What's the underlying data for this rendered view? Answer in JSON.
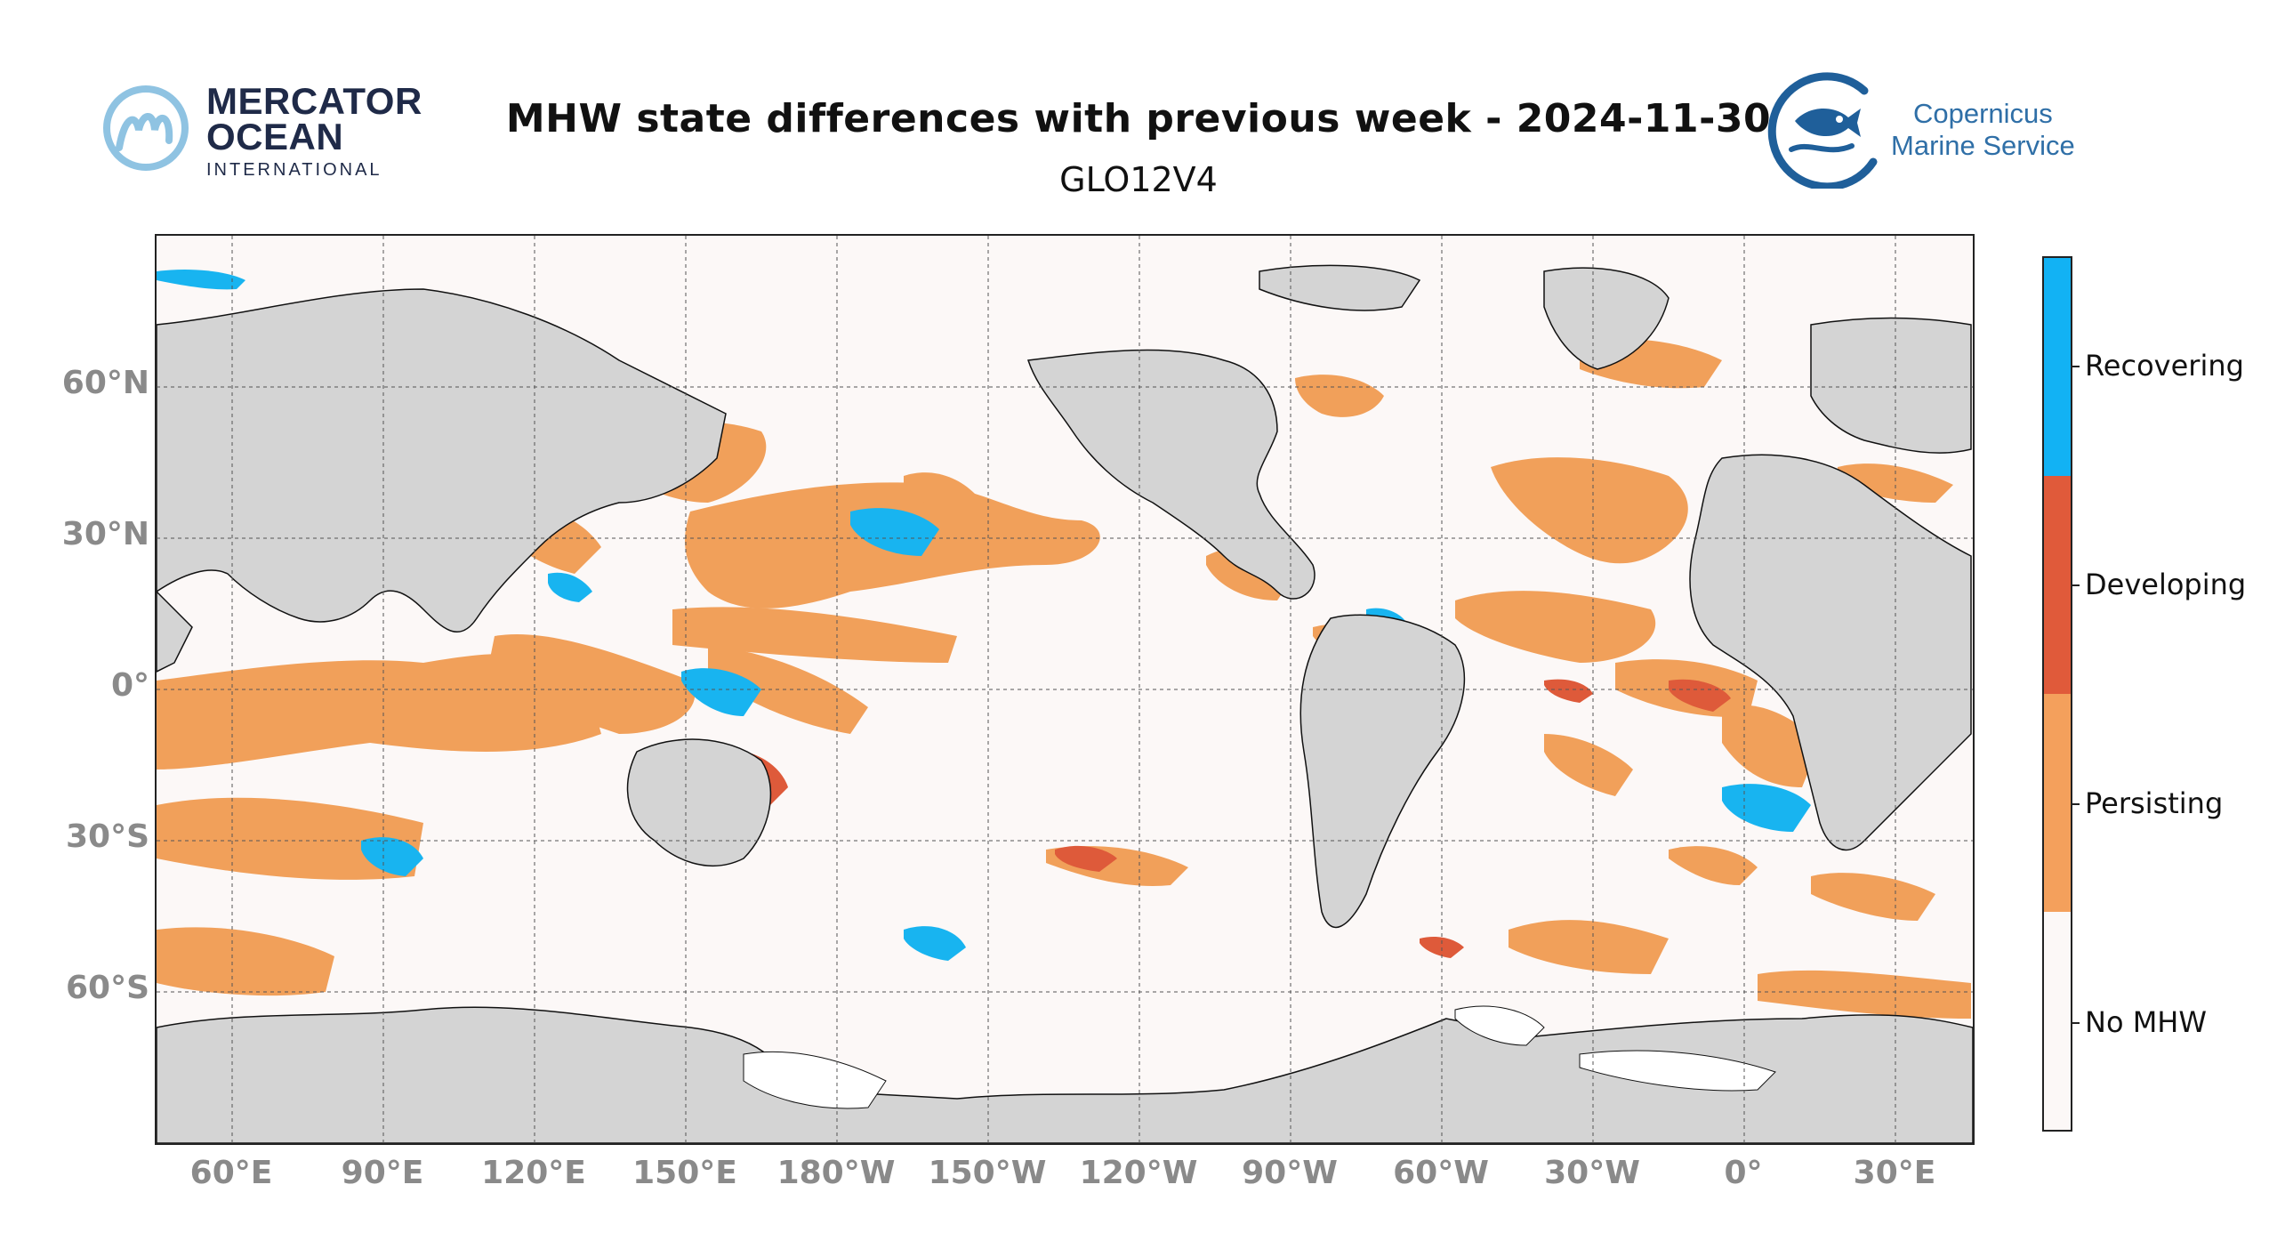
{
  "header": {
    "title": "MHW state differences with previous week - 2024-11-30",
    "subtitle": "GLO12V4"
  },
  "logos": {
    "left": {
      "line1": "MERCATOR",
      "line2": "OCEAN",
      "line3": "INTERNATIONAL"
    },
    "right": {
      "line1": "Copernicus",
      "line2": "Marine Service"
    }
  },
  "map": {
    "projection": "PlateCarree, centered 180°",
    "lon_range": [
      45,
      405
    ],
    "lat_range": [
      -90,
      90
    ],
    "lat_ticks": [
      "60°N",
      "30°N",
      "0°",
      "30°S",
      "60°S"
    ],
    "lon_ticks": [
      "60°E",
      "90°E",
      "120°E",
      "150°E",
      "180°W",
      "150°W",
      "120°W",
      "90°W",
      "60°W",
      "30°W",
      "0°",
      "30°E"
    ],
    "colors": {
      "ocean": "#fcf8f7",
      "land": "#d4d4d4",
      "ice": "#ffffff",
      "persisting": "#f1a05a",
      "developing": "#de5a3a",
      "recovering": "#18b4f0"
    }
  },
  "colorbar": {
    "categories": [
      {
        "label": "Recovering",
        "color": "#12b2f4"
      },
      {
        "label": "Developing",
        "color": "#e05a3a"
      },
      {
        "label": "Persisting",
        "color": "#f4a05c"
      },
      {
        "label": "No MHW",
        "color": "#fcf8f7"
      }
    ]
  }
}
